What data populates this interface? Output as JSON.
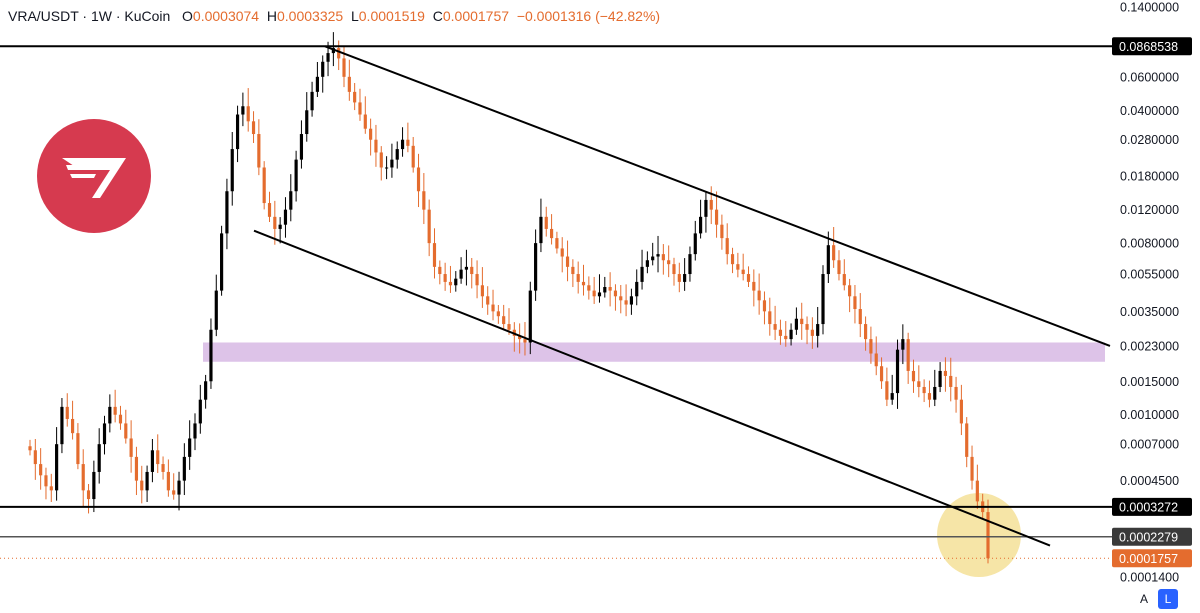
{
  "header": {
    "symbol": "VRA/USDT · 1W · KuCoin",
    "open_label": "O",
    "open": "0.0003074",
    "high_label": "H",
    "high": "0.0003325",
    "low_label": "L",
    "low": "0.0001519",
    "close_label": "C",
    "close": "0.0001757",
    "change": "−0.0001316 (−42.82%)"
  },
  "buttons": {
    "auto": "A",
    "log": "L"
  },
  "colors": {
    "up": "#000000",
    "down": "#e46c2e",
    "zone": "#d9bde6",
    "highlight": "#f3dc8a",
    "logo": "#d63a4f",
    "last_price": "#e46c2e"
  },
  "chart_data": {
    "type": "candlestick",
    "scale": "log",
    "price_axis_ticks": [
      "0.1400000",
      "0.0868538",
      "0.0600000",
      "0.0400000",
      "0.0280000",
      "0.0180000",
      "0.0120000",
      "0.0080000",
      "0.0055000",
      "0.0035000",
      "0.0023000",
      "0.0015000",
      "0.0010000",
      "0.0007000",
      "0.0004500",
      "0.0003272",
      "0.0002279",
      "0.0001757",
      "0.0001400"
    ],
    "tagged_levels": [
      {
        "value": "0.0868538",
        "style": "black"
      },
      {
        "value": "0.0003272",
        "style": "black"
      },
      {
        "value": "0.0002279",
        "style": "gray"
      },
      {
        "value": "0.0001757",
        "style": "last"
      }
    ],
    "horizontal_lines": [
      0.0868538,
      0.0003272,
      0.0002279
    ],
    "last_price": 0.0001757,
    "zone": {
      "low": 0.0019,
      "high": 0.0024
    },
    "channel_upper": [
      {
        "index": 0,
        "price": 0.0868538
      },
      {
        "index": 180,
        "price": 0.0023
      }
    ],
    "channel_lower": [
      {
        "index": 0,
        "price": 0.0093
      },
      {
        "index": 180,
        "price": 0.000205
      }
    ],
    "ylim": [
      0.000135,
      0.145
    ],
    "series": [
      {
        "name": "VRA/USDT",
        "close": [
          0.00065,
          0.00055,
          0.00048,
          0.00042,
          0.0004,
          0.0007,
          0.0011,
          0.00095,
          0.0008,
          0.00055,
          0.0004,
          0.00036,
          0.0005,
          0.0007,
          0.0009,
          0.0011,
          0.001,
          0.0009,
          0.00075,
          0.0006,
          0.00045,
          0.0004,
          0.0005,
          0.00065,
          0.00055,
          0.0005,
          0.0004,
          0.00038,
          0.00045,
          0.0006,
          0.00075,
          0.0009,
          0.0012,
          0.0015,
          0.0028,
          0.0045,
          0.009,
          0.015,
          0.025,
          0.038,
          0.042,
          0.035,
          0.03,
          0.02,
          0.013,
          0.011,
          0.0095,
          0.01,
          0.012,
          0.015,
          0.022,
          0.03,
          0.04,
          0.05,
          0.06,
          0.072,
          0.08,
          0.085,
          0.075,
          0.06,
          0.05,
          0.044,
          0.038,
          0.032,
          0.028,
          0.024,
          0.02,
          0.02,
          0.022,
          0.025,
          0.028,
          0.026,
          0.02,
          0.015,
          0.012,
          0.008,
          0.006,
          0.0055,
          0.005,
          0.0048,
          0.0052,
          0.0058,
          0.006,
          0.0055,
          0.0048,
          0.0042,
          0.0038,
          0.0035,
          0.0033,
          0.003,
          0.0028,
          0.0026,
          0.0025,
          0.0024,
          0.0045,
          0.008,
          0.011,
          0.0095,
          0.0085,
          0.0075,
          0.0068,
          0.006,
          0.0055,
          0.005,
          0.0048,
          0.0045,
          0.0042,
          0.0044,
          0.0047,
          0.0045,
          0.0042,
          0.004,
          0.0038,
          0.0042,
          0.005,
          0.006,
          0.0065,
          0.0068,
          0.007,
          0.0065,
          0.0062,
          0.0055,
          0.005,
          0.0055,
          0.007,
          0.009,
          0.011,
          0.0135,
          0.012,
          0.01,
          0.0085,
          0.007,
          0.0062,
          0.0058,
          0.0055,
          0.005,
          0.0045,
          0.004,
          0.0035,
          0.003,
          0.0028,
          0.0026,
          0.0025,
          0.0028,
          0.0032,
          0.003,
          0.0028,
          0.0026,
          0.003,
          0.0055,
          0.0078,
          0.0065,
          0.0055,
          0.0048,
          0.0042,
          0.0036,
          0.003,
          0.0025,
          0.0021,
          0.0018,
          0.0015,
          0.0012,
          0.0013,
          0.0022,
          0.0025,
          0.0017,
          0.0015,
          0.0014,
          0.0013,
          0.0012,
          0.0014,
          0.0017,
          0.0016,
          0.0014,
          0.0012,
          0.0009,
          0.0006,
          0.00045,
          0.00035,
          0.0003074,
          0.0001757
        ]
      }
    ]
  }
}
